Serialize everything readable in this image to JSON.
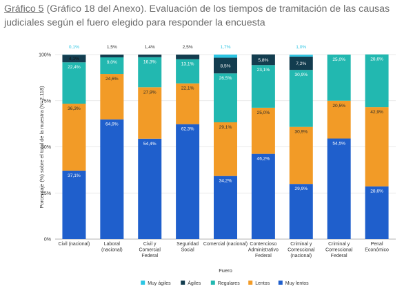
{
  "title": {
    "label": "Gráfico 5",
    "text": " (Gráfico 18 del Anexo). Evaluación de los tiempos de tramitación de las causas judiciales según el fuero elegido para responder la encuesta"
  },
  "chart_data": {
    "type": "bar",
    "stacked": true,
    "normalized": true,
    "xlabel": "Fuero",
    "ylabel": "Porcentaje (%) sobre el total de la muestra (N=2.118)",
    "ylim": [
      0,
      100
    ],
    "yticks": [
      "0%",
      "25%",
      "50%",
      "75%",
      "100%"
    ],
    "categories": [
      [
        "Civil (nacional)"
      ],
      [
        "Laboral",
        "(nacional)"
      ],
      [
        "Civil y",
        "Comercial",
        "Federal"
      ],
      [
        "Seguridad",
        "Social"
      ],
      [
        "Comercial (nacional)"
      ],
      [
        "Contencioso",
        "Administrativo",
        "Federal"
      ],
      [
        "Criminal y",
        "Correccional",
        "(nacional)"
      ],
      [
        "Criminal y",
        "Correccional",
        "Federal"
      ],
      [
        "Penal",
        "Económico"
      ]
    ],
    "series": [
      {
        "name": "Muy lentos",
        "color": "#1f5fcc",
        "values": [
          37.1,
          64.9,
          54.4,
          62.3,
          34.2,
          46.2,
          29.9,
          54.5,
          28.6
        ],
        "labels": [
          "37,1%",
          "64,9%",
          "54,4%",
          "62,3%",
          "34,2%",
          "46,2%",
          "29,9%",
          "54,5%",
          "28,6%"
        ]
      },
      {
        "name": "Lentos",
        "color": "#f29b27",
        "values": [
          36.3,
          24.6,
          27.9,
          22.1,
          29.1,
          25.0,
          30.9,
          20.5,
          42.9
        ],
        "labels": [
          "36,3%",
          "24,6%",
          "27,9%",
          "22,1%",
          "29,1%",
          "25,0%",
          "30,9%",
          "20,5%",
          "42,9%"
        ]
      },
      {
        "name": "Regulares",
        "color": "#22b8b0",
        "values": [
          22.4,
          9.0,
          16.3,
          13.1,
          26.5,
          23.1,
          30.9,
          25.0,
          28.6
        ],
        "labels": [
          "22,4%",
          "9,0%",
          "16,3%",
          "13,1%",
          "26,5%",
          "23,1%",
          "30,9%",
          "25,0%",
          "28,6%"
        ]
      },
      {
        "name": "Ágiles",
        "color": "#133d4f",
        "values": [
          4.1,
          1.5,
          1.4,
          2.5,
          8.5,
          5.8,
          7.2,
          0,
          0
        ],
        "labels": [
          "4,1%",
          "1,5%",
          "1,4%",
          "2,5%",
          "8,5%",
          "5,8%",
          "7,2%",
          "",
          ""
        ]
      },
      {
        "name": "Muy ágiles",
        "color": "#2cc5e3",
        "values": [
          0.1,
          0,
          0,
          0,
          1.7,
          0,
          1.0,
          0,
          0
        ],
        "labels": [
          "0,1%",
          "",
          "",
          "",
          "1,7%",
          "",
          "1,0%",
          "",
          ""
        ]
      }
    ],
    "legend_order": [
      "Muy ágiles",
      "Ágiles",
      "Regulares",
      "Lentos",
      "Muy lentos"
    ],
    "legend_position": "bottom",
    "grid": true
  }
}
